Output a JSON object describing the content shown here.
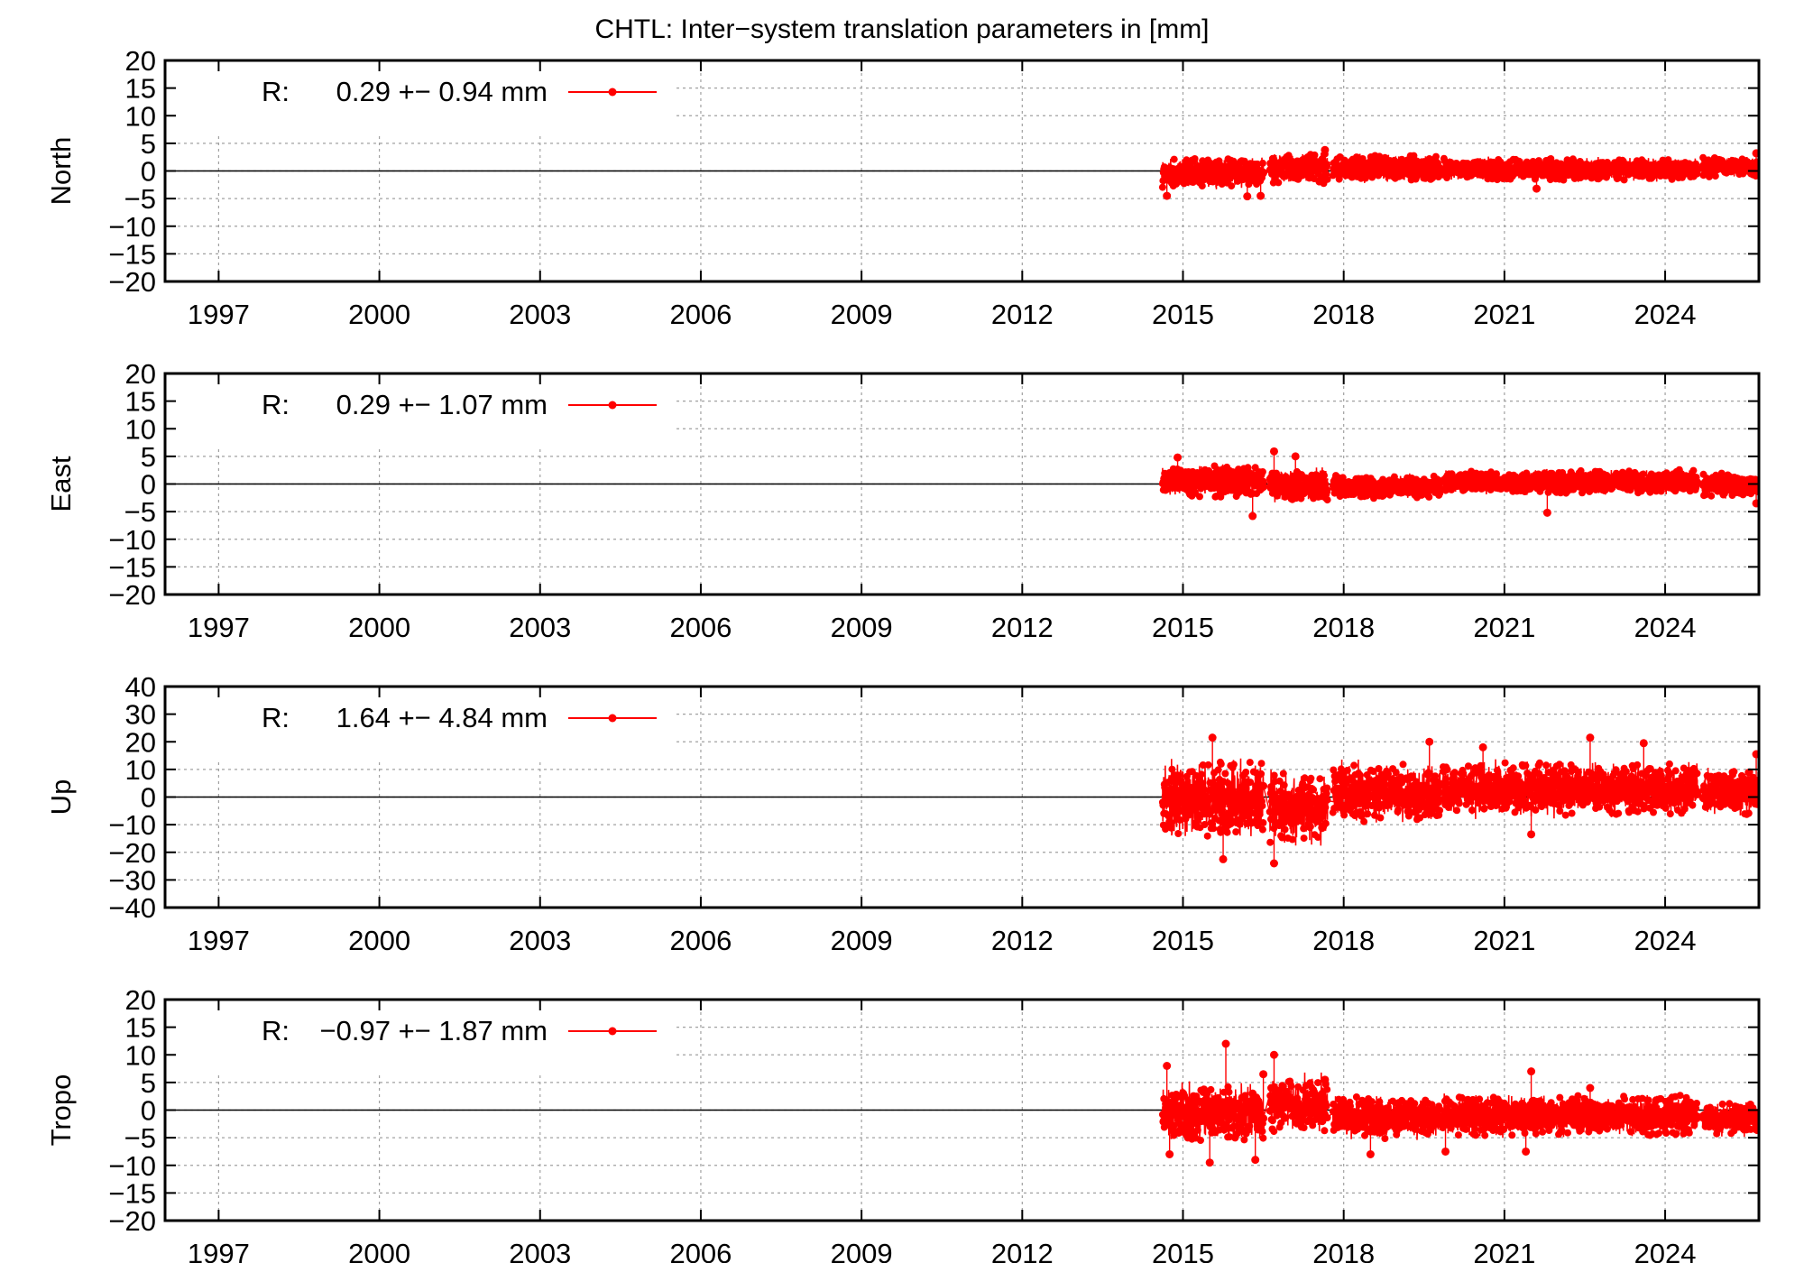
{
  "title": "CHTL: Inter−system translation parameters in [mm]",
  "colors": {
    "series": "#ff0000",
    "axis": "#000000",
    "grid": "#a0a0a0",
    "background": "#ffffff"
  },
  "chart_data": [
    {
      "type": "line",
      "ylabel": "North",
      "ylim": [
        -20,
        20
      ],
      "yticks": [
        20,
        15,
        10,
        5,
        0,
        -5,
        -10,
        -15,
        -20
      ],
      "xlim": [
        1996.0,
        2025.75
      ],
      "xticks": [
        1997,
        2000,
        2003,
        2006,
        2009,
        2012,
        2015,
        2018,
        2021,
        2024
      ],
      "grid": true,
      "zero_line": true,
      "legend": {
        "placement": "top-left",
        "prefix": "R:",
        "text": "0.29 +− 0.94 mm"
      },
      "series": [
        {
          "x": [
            2014.65,
            2014.85,
            2015.1,
            2015.35,
            2015.6,
            2015.85,
            2016.1,
            2016.3,
            2016.5,
            2016.65,
            2016.9,
            2017.15,
            2017.4,
            2017.6,
            2017.9,
            2018.15,
            2018.4,
            2018.7,
            2019.0,
            2019.3,
            2019.6,
            2019.9,
            2020.25,
            2020.6,
            2020.9,
            2021.2,
            2021.55,
            2021.9,
            2022.2,
            2022.5,
            2022.8,
            2023.1,
            2023.4,
            2023.7,
            2024.0,
            2024.3,
            2024.6,
            2024.85,
            2025.1,
            2025.4,
            2025.7
          ],
          "y": [
            0.3,
            -0.8,
            1.2,
            0.5,
            -1.0,
            0.8,
            -0.5,
            1.1,
            -0.3,
            0.4,
            1.8,
            0.6,
            1.5,
            2.1,
            0.9,
            1.3,
            0.7,
            0.4,
            0.2,
            -0.2,
            0.6,
            0.1,
            0.5,
            0.3,
            0.1,
            0.6,
            -0.4,
            0.2,
            0.5,
            0.9,
            0.3,
            0.6,
            0.4,
            0.2,
            0.7,
            0.5,
            0.2,
            0.1,
            0.6,
            0.8,
            0.4
          ],
          "envelope": [
            {
              "x0": 2014.62,
              "x1": 2016.5,
              "ymin": -3.5,
              "ymax": 3.0
            },
            {
              "x0": 2016.62,
              "x1": 2017.7,
              "ymin": -3.0,
              "ymax": 4.0
            },
            {
              "x0": 2017.8,
              "x1": 2019.8,
              "ymin": -2.5,
              "ymax": 3.5
            },
            {
              "x0": 2019.85,
              "x1": 2024.6,
              "ymin": -2.2,
              "ymax": 2.8
            },
            {
              "x0": 2024.7,
              "x1": 2025.75,
              "ymin": -1.5,
              "ymax": 3.0
            }
          ],
          "outliers": [
            [
              2014.7,
              -4.5
            ],
            [
              2016.2,
              -4.6
            ],
            [
              2016.45,
              -4.5
            ],
            [
              2017.65,
              3.8
            ],
            [
              2021.6,
              -3.2
            ],
            [
              2025.7,
              3.2
            ]
          ]
        }
      ]
    },
    {
      "type": "line",
      "ylabel": "East",
      "ylim": [
        -20,
        20
      ],
      "yticks": [
        20,
        15,
        10,
        5,
        0,
        -5,
        -10,
        -15,
        -20
      ],
      "xlim": [
        1996.0,
        2025.75
      ],
      "xticks": [
        1997,
        2000,
        2003,
        2006,
        2009,
        2012,
        2015,
        2018,
        2021,
        2024
      ],
      "grid": true,
      "zero_line": true,
      "legend": {
        "placement": "top-left",
        "prefix": "R:",
        "text": "0.29 +− 1.07 mm"
      },
      "series": [
        {
          "x": [
            2014.65,
            2014.85,
            2015.1,
            2015.35,
            2015.6,
            2015.85,
            2016.1,
            2016.3,
            2016.5,
            2016.65,
            2016.9,
            2017.15,
            2017.4,
            2017.6,
            2017.9,
            2018.15,
            2018.4,
            2018.7,
            2019.0,
            2019.3,
            2019.6,
            2019.9,
            2020.25,
            2020.6,
            2020.9,
            2021.2,
            2021.55,
            2021.9,
            2022.2,
            2022.5,
            2022.8,
            2023.1,
            2023.4,
            2023.7,
            2024.0,
            2024.3,
            2024.6,
            2024.85,
            2025.1,
            2025.4,
            2025.7
          ],
          "y": [
            1.0,
            1.5,
            0.8,
            2.0,
            1.2,
            0.6,
            1.5,
            0.2,
            -0.5,
            1.2,
            0.5,
            -0.3,
            0.4,
            -1.5,
            -0.6,
            -1.0,
            -0.4,
            -0.8,
            -0.5,
            -0.2,
            -0.6,
            0.3,
            0.8,
            1.2,
            0.4,
            0.9,
            1.1,
            0.2,
            0.6,
            0.4,
            0.8,
            0.5,
            1.0,
            0.6,
            1.2,
            0.5,
            0.3,
            0.2,
            0.8,
            0.5,
            0.0
          ],
          "envelope": [
            {
              "x0": 2014.62,
              "x1": 2016.5,
              "ymin": -3.0,
              "ymax": 4.0
            },
            {
              "x0": 2016.62,
              "x1": 2017.7,
              "ymin": -4.0,
              "ymax": 3.5
            },
            {
              "x0": 2017.8,
              "x1": 2019.8,
              "ymin": -3.0,
              "ymax": 2.0
            },
            {
              "x0": 2019.85,
              "x1": 2024.6,
              "ymin": -2.2,
              "ymax": 3.0
            },
            {
              "x0": 2024.7,
              "x1": 2025.75,
              "ymin": -3.0,
              "ymax": 2.5
            }
          ],
          "outliers": [
            [
              2014.9,
              4.8
            ],
            [
              2016.3,
              -5.8
            ],
            [
              2016.7,
              5.9
            ],
            [
              2017.1,
              5.0
            ],
            [
              2021.8,
              -5.2
            ],
            [
              2025.7,
              -3.5
            ]
          ]
        }
      ]
    },
    {
      "type": "line",
      "ylabel": "Up",
      "ylim": [
        -40,
        40
      ],
      "yticks": [
        40,
        30,
        20,
        10,
        0,
        -10,
        -20,
        -30,
        -40
      ],
      "xlim": [
        1996.0,
        2025.75
      ],
      "xticks": [
        1997,
        2000,
        2003,
        2006,
        2009,
        2012,
        2015,
        2018,
        2021,
        2024
      ],
      "grid": true,
      "zero_line": true,
      "legend": {
        "placement": "top-left",
        "prefix": "R:",
        "text": "1.64 +− 4.84 mm"
      },
      "series": [
        {
          "x": [
            2014.65,
            2014.85,
            2015.1,
            2015.35,
            2015.6,
            2015.85,
            2016.1,
            2016.3,
            2016.5,
            2016.65,
            2016.9,
            2017.15,
            2017.4,
            2017.6,
            2017.9,
            2018.15,
            2018.4,
            2018.7,
            2019.0,
            2019.3,
            2019.6,
            2019.9,
            2020.25,
            2020.6,
            2020.9,
            2021.2,
            2021.55,
            2021.9,
            2022.2,
            2022.5,
            2022.8,
            2023.1,
            2023.4,
            2023.7,
            2024.0,
            2024.3,
            2024.6,
            2024.85,
            2025.1,
            2025.4,
            2025.7
          ],
          "y": [
            -2.0,
            3.0,
            -4.0,
            5.0,
            0.5,
            -6.0,
            2.0,
            -3.0,
            4.0,
            -8.0,
            1.0,
            -2.0,
            3.0,
            -1.0,
            -2.0,
            2.0,
            -1.0,
            3.0,
            -1.5,
            4.0,
            1.0,
            5.0,
            2.0,
            6.0,
            3.0,
            1.0,
            4.0,
            2.0,
            5.0,
            3.0,
            1.0,
            4.0,
            2.0,
            5.0,
            3.0,
            2.0,
            1.0,
            0.5,
            2.0,
            4.0,
            1.0
          ],
          "envelope": [
            {
              "x0": 2014.62,
              "x1": 2016.5,
              "ymin": -18.0,
              "ymax": 16.0
            },
            {
              "x0": 2016.62,
              "x1": 2017.7,
              "ymin": -20.0,
              "ymax": 12.0
            },
            {
              "x0": 2017.8,
              "x1": 2019.8,
              "ymin": -11.0,
              "ymax": 14.0
            },
            {
              "x0": 2019.85,
              "x1": 2024.6,
              "ymin": -9.0,
              "ymax": 15.0
            },
            {
              "x0": 2024.7,
              "x1": 2025.75,
              "ymin": -8.0,
              "ymax": 12.0
            }
          ],
          "outliers": [
            [
              2015.55,
              21.5
            ],
            [
              2015.75,
              -22.5
            ],
            [
              2016.7,
              -24.0
            ],
            [
              2019.6,
              20.0
            ],
            [
              2020.6,
              18.0
            ],
            [
              2021.5,
              -13.5
            ],
            [
              2022.6,
              21.5
            ],
            [
              2023.6,
              19.5
            ],
            [
              2025.7,
              15.5
            ]
          ]
        }
      ]
    },
    {
      "type": "line",
      "ylabel": "Tropo",
      "ylim": [
        -20,
        20
      ],
      "yticks": [
        20,
        15,
        10,
        5,
        0,
        -5,
        -10,
        -15,
        -20
      ],
      "xlim": [
        1996.0,
        2025.75
      ],
      "xticks": [
        1997,
        2000,
        2003,
        2006,
        2009,
        2012,
        2015,
        2018,
        2021,
        2024
      ],
      "grid": true,
      "zero_line": true,
      "legend": {
        "placement": "top-left",
        "prefix": "R:",
        "text": "−0.97 +− 1.87 mm"
      },
      "series": [
        {
          "x": [
            2014.65,
            2014.85,
            2015.1,
            2015.35,
            2015.6,
            2015.85,
            2016.1,
            2016.3,
            2016.5,
            2016.65,
            2016.9,
            2017.15,
            2017.4,
            2017.6,
            2017.9,
            2018.15,
            2018.4,
            2018.7,
            2019.0,
            2019.3,
            2019.6,
            2019.9,
            2020.25,
            2020.6,
            2020.9,
            2021.2,
            2021.55,
            2021.9,
            2022.2,
            2022.5,
            2022.8,
            2023.1,
            2023.4,
            2023.7,
            2024.0,
            2024.3,
            2024.6,
            2024.85,
            2025.1,
            2025.4,
            2025.7
          ],
          "y": [
            -1.0,
            2.0,
            -3.0,
            1.5,
            -4.0,
            0.5,
            -2.0,
            3.0,
            -1.5,
            4.0,
            0.5,
            -1.0,
            1.0,
            -2.0,
            0.2,
            -1.5,
            0.5,
            -1.0,
            -0.5,
            0.3,
            -0.8,
            -1.5,
            -0.5,
            -1.2,
            -2.0,
            -0.8,
            -1.5,
            -0.3,
            -1.0,
            0.2,
            -0.6,
            -1.2,
            -0.4,
            -1.0,
            -0.3,
            -0.8,
            -1.2,
            -1.5,
            -0.6,
            -1.0,
            -1.8
          ],
          "envelope": [
            {
              "x0": 2014.62,
              "x1": 2016.5,
              "ymin": -7.0,
              "ymax": 6.0
            },
            {
              "x0": 2016.62,
              "x1": 2017.7,
              "ymin": -5.0,
              "ymax": 7.0
            },
            {
              "x0": 2017.8,
              "x1": 2019.8,
              "ymin": -6.0,
              "ymax": 3.5
            },
            {
              "x0": 2019.85,
              "x1": 2024.6,
              "ymin": -5.5,
              "ymax": 3.5
            },
            {
              "x0": 2024.7,
              "x1": 2025.75,
              "ymin": -5.0,
              "ymax": 2.0
            }
          ],
          "outliers": [
            [
              2014.7,
              8.0
            ],
            [
              2014.75,
              -8.0
            ],
            [
              2015.5,
              -9.5
            ],
            [
              2015.8,
              12.0
            ],
            [
              2016.35,
              -9.0
            ],
            [
              2016.5,
              6.5
            ],
            [
              2016.7,
              10.0
            ],
            [
              2017.65,
              5.5
            ],
            [
              2018.5,
              -8.0
            ],
            [
              2019.9,
              -7.5
            ],
            [
              2021.5,
              7.0
            ],
            [
              2021.4,
              -7.5
            ],
            [
              2022.6,
              4.0
            ]
          ]
        }
      ]
    }
  ]
}
